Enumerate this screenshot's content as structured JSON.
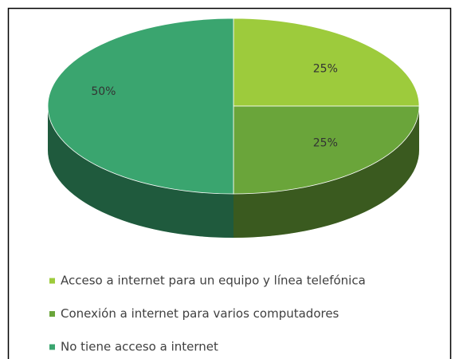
{
  "chart_data": {
    "type": "pie",
    "categories": [
      "Acceso a internet para un equipo y línea telefónica",
      "Conexión a internet para varios computadores",
      "No tiene acceso a internet"
    ],
    "values": [
      25,
      25,
      50
    ],
    "value_labels": [
      "25%",
      "25%",
      "50%"
    ],
    "colors": [
      "#9dcb3c",
      "#6aa53a",
      "#3aa56f"
    ],
    "legend": "bottom"
  }
}
